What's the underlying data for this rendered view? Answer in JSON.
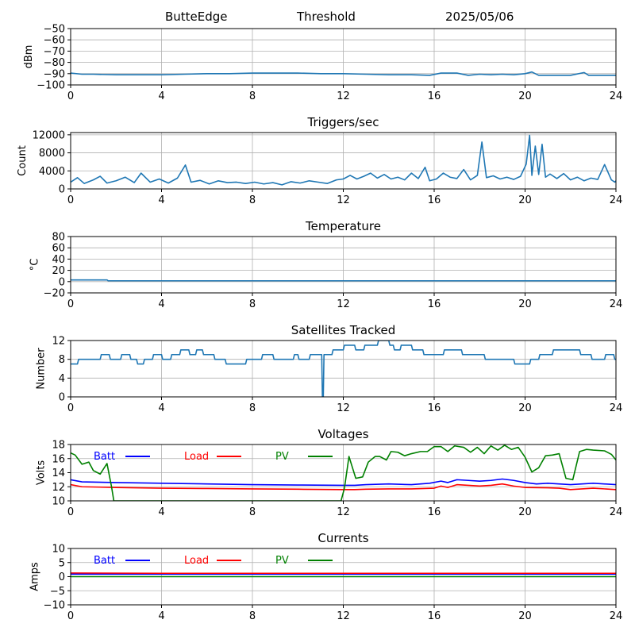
{
  "header": {
    "station": "ButteEdge",
    "label": "Threshold",
    "date": "2025/05/06"
  },
  "chart_data": [
    {
      "id": "threshold",
      "type": "line",
      "title": "",
      "ylabel": "dBm",
      "xlim": [
        0,
        24
      ],
      "ylim": [
        -100,
        -50
      ],
      "xticks": [
        0,
        4,
        8,
        12,
        16,
        20,
        24
      ],
      "yticks": [
        -100,
        -90,
        -80,
        -70,
        -60,
        -50
      ],
      "grid": true,
      "series": [
        {
          "color": "#1f77b4",
          "x": [
            0,
            0.5,
            1,
            2,
            3,
            4,
            5,
            6,
            7,
            8,
            9,
            10,
            11,
            12,
            13,
            14,
            15,
            15.8,
            16.3,
            17,
            17.5,
            18,
            18.5,
            19,
            19.5,
            20,
            20.3,
            20.6,
            21,
            22,
            22.6,
            22.8,
            23.5,
            24
          ],
          "y": [
            -89.5,
            -90.5,
            -90.5,
            -91,
            -91,
            -91,
            -90.5,
            -90,
            -90,
            -89.5,
            -89.5,
            -89.5,
            -90,
            -90,
            -90.5,
            -91,
            -91,
            -91.5,
            -89.5,
            -89.5,
            -91.5,
            -90.5,
            -91,
            -90.5,
            -91,
            -90,
            -88.5,
            -91.5,
            -91.5,
            -91.5,
            -89,
            -91.5,
            -91.5,
            -91.5
          ]
        }
      ]
    },
    {
      "id": "triggers",
      "type": "line",
      "title": "Triggers/sec",
      "ylabel": "Count",
      "xlim": [
        0,
        24
      ],
      "ylim": [
        0,
        12500
      ],
      "xticks": [
        0,
        4,
        8,
        12,
        16,
        20,
        24
      ],
      "yticks": [
        0,
        4000,
        8000,
        12000
      ],
      "grid": true,
      "series": [
        {
          "color": "#1f77b4",
          "x": [
            0,
            0.3,
            0.6,
            1,
            1.3,
            1.6,
            2,
            2.4,
            2.8,
            3.1,
            3.5,
            3.9,
            4.3,
            4.7,
            5.05,
            5.3,
            5.7,
            6.1,
            6.5,
            6.9,
            7.3,
            7.7,
            8.1,
            8.5,
            8.9,
            9.3,
            9.7,
            10.1,
            10.5,
            10.9,
            11.3,
            11.7,
            12,
            12.3,
            12.6,
            12.9,
            13.2,
            13.5,
            13.8,
            14.1,
            14.4,
            14.7,
            15,
            15.3,
            15.6,
            15.8,
            16.1,
            16.4,
            16.7,
            17,
            17.3,
            17.6,
            17.9,
            18.1,
            18.3,
            18.6,
            18.9,
            19.2,
            19.5,
            19.8,
            20.05,
            20.2,
            20.3,
            20.45,
            20.6,
            20.75,
            20.9,
            21.1,
            21.4,
            21.7,
            22,
            22.3,
            22.6,
            22.9,
            23.2,
            23.5,
            23.8,
            23.95,
            24
          ],
          "y": [
            1500,
            2500,
            1200,
            2000,
            2800,
            1300,
            1800,
            2600,
            1400,
            3500,
            1500,
            2200,
            1300,
            2400,
            5300,
            1500,
            1900,
            1100,
            1800,
            1400,
            1500,
            1200,
            1500,
            1100,
            1400,
            900,
            1600,
            1300,
            1800,
            1500,
            1200,
            2000,
            2200,
            3000,
            2200,
            2800,
            3500,
            2400,
            3200,
            2200,
            2600,
            2000,
            3500,
            2300,
            4800,
            1800,
            2200,
            3500,
            2600,
            2300,
            4300,
            2000,
            3000,
            10400,
            2500,
            2900,
            2200,
            2600,
            2100,
            2800,
            5500,
            11900,
            3000,
            9500,
            3200,
            9900,
            2600,
            3300,
            2300,
            3400,
            2000,
            2600,
            1800,
            2400,
            2100,
            5400,
            2000,
            1500,
            1800
          ]
        }
      ]
    },
    {
      "id": "temperature",
      "type": "line",
      "title": "Temperature",
      "ylabel": "°C",
      "xlim": [
        0,
        24
      ],
      "ylim": [
        -20,
        80
      ],
      "xticks": [
        0,
        4,
        8,
        12,
        16,
        20,
        24
      ],
      "yticks": [
        -20,
        0,
        20,
        40,
        60,
        80
      ],
      "grid": true,
      "series": [
        {
          "color": "#1f77b4",
          "x": [
            0,
            1.6,
            1.65,
            24
          ],
          "y": [
            3,
            3,
            1.5,
            1.5
          ]
        }
      ]
    },
    {
      "id": "satellites",
      "type": "line",
      "title": "Satellites Tracked",
      "ylabel": "Number",
      "xlim": [
        0,
        24
      ],
      "ylim": [
        0,
        12
      ],
      "xticks": [
        0,
        4,
        8,
        12,
        16,
        20,
        24
      ],
      "yticks": [
        0,
        4,
        8,
        12
      ],
      "grid": true,
      "series": [
        {
          "color": "#1f77b4",
          "x": [
            0,
            0.3,
            0.35,
            1.3,
            1.35,
            1.7,
            1.75,
            2.2,
            2.25,
            2.6,
            2.65,
            2.9,
            2.95,
            3.2,
            3.25,
            3.6,
            3.65,
            4,
            4.05,
            4.4,
            4.45,
            4.8,
            4.85,
            5.2,
            5.25,
            5.5,
            5.55,
            5.8,
            5.85,
            6.3,
            6.35,
            6.8,
            6.85,
            7.7,
            7.75,
            8.4,
            8.45,
            8.9,
            8.95,
            9.8,
            9.85,
            10,
            10.05,
            10.5,
            10.55,
            11.05,
            11.08,
            11.12,
            11.15,
            11.5,
            11.55,
            12,
            12.05,
            12.5,
            12.55,
            12.9,
            12.95,
            13.5,
            13.55,
            14,
            14.05,
            14.2,
            14.25,
            14.5,
            14.55,
            15,
            15.05,
            15.5,
            15.55,
            16.4,
            16.45,
            17.2,
            17.25,
            18.2,
            18.25,
            19.5,
            19.55,
            20.2,
            20.25,
            20.6,
            20.65,
            21.2,
            21.25,
            22.4,
            22.45,
            22.9,
            22.95,
            23.5,
            23.55,
            23.9,
            23.95,
            24
          ],
          "y": [
            7,
            7,
            8,
            8,
            9,
            9,
            8,
            8,
            9,
            9,
            8,
            8,
            7,
            7,
            8,
            8,
            9,
            9,
            8,
            8,
            9,
            9,
            10,
            10,
            9,
            9,
            10,
            10,
            9,
            9,
            8,
            8,
            7,
            7,
            8,
            8,
            9,
            9,
            8,
            8,
            9,
            9,
            8,
            8,
            9,
            9,
            0,
            0,
            9,
            9,
            10,
            10,
            11,
            11,
            10,
            10,
            11,
            11,
            12,
            12,
            11,
            11,
            10,
            10,
            11,
            11,
            10,
            10,
            9,
            9,
            10,
            10,
            9,
            9,
            8,
            8,
            7,
            7,
            8,
            8,
            9,
            9,
            10,
            10,
            9,
            9,
            8,
            8,
            9,
            9,
            8,
            8
          ]
        }
      ]
    },
    {
      "id": "voltages",
      "type": "line",
      "title": "Voltages",
      "ylabel": "Volts",
      "xlim": [
        0,
        24
      ],
      "ylim": [
        10,
        18
      ],
      "xticks": [
        0,
        4,
        8,
        12,
        16,
        20,
        24
      ],
      "yticks": [
        10,
        12,
        14,
        16,
        18
      ],
      "grid": true,
      "legend": "top",
      "series": [
        {
          "name": "Batt",
          "color": "#0000ff",
          "x": [
            0,
            0.5,
            2,
            4,
            6,
            8,
            10,
            12,
            12.5,
            13,
            14,
            15,
            15.8,
            16.3,
            16.6,
            17,
            17.5,
            18,
            18.5,
            19,
            19.5,
            20,
            20.5,
            21,
            21.5,
            22,
            23,
            24
          ],
          "y": [
            13,
            12.7,
            12.6,
            12.5,
            12.4,
            12.3,
            12.25,
            12.2,
            12.2,
            12.3,
            12.4,
            12.3,
            12.5,
            12.8,
            12.6,
            13,
            12.9,
            12.8,
            12.9,
            13.1,
            12.9,
            12.6,
            12.4,
            12.5,
            12.4,
            12.3,
            12.5,
            12.3
          ]
        },
        {
          "name": "Load",
          "color": "#ff0000",
          "x": [
            0,
            0.5,
            2,
            4,
            6,
            8,
            10,
            12,
            12.5,
            13,
            14,
            15,
            16,
            16.3,
            16.6,
            17,
            17.5,
            18,
            18.5,
            19,
            19.5,
            20,
            21,
            21.5,
            22,
            23,
            24
          ],
          "y": [
            12.3,
            12,
            11.9,
            11.8,
            11.75,
            11.7,
            11.65,
            11.6,
            11.6,
            11.65,
            11.7,
            11.7,
            11.8,
            12.1,
            11.9,
            12.3,
            12.2,
            12.1,
            12.2,
            12.4,
            12.1,
            11.9,
            11.85,
            11.8,
            11.6,
            11.8,
            11.6
          ]
        },
        {
          "name": "PV",
          "color": "#008000",
          "x": [
            0,
            0.2,
            0.5,
            0.8,
            1,
            1.3,
            1.6,
            1.8,
            1.9,
            2.0,
            11.9,
            12.05,
            12.25,
            12.55,
            12.85,
            13.1,
            13.4,
            13.6,
            13.9,
            14.1,
            14.4,
            14.7,
            15,
            15.4,
            15.7,
            16,
            16.3,
            16.6,
            16.9,
            17.3,
            17.6,
            17.9,
            18.2,
            18.5,
            18.8,
            19.1,
            19.4,
            19.7,
            20,
            20.3,
            20.6,
            20.9,
            21.2,
            21.5,
            21.8,
            22.1,
            22.4,
            22.7,
            23,
            23.5,
            23.8,
            24
          ],
          "y": [
            16.8,
            16.5,
            15.2,
            15.5,
            14.3,
            13.8,
            15.3,
            12.0,
            10,
            10,
            10,
            11.8,
            16.3,
            13.2,
            13.4,
            15.5,
            16.3,
            16.3,
            15.8,
            17,
            16.9,
            16.4,
            16.7,
            17,
            17,
            17.7,
            17.7,
            17,
            17.8,
            17.6,
            16.9,
            17.6,
            16.7,
            17.8,
            17.2,
            17.9,
            17.3,
            17.6,
            16.2,
            14.1,
            14.7,
            16.4,
            16.5,
            16.7,
            13.2,
            13,
            17,
            17.3,
            17.2,
            17.1,
            16.6,
            15.8
          ]
        }
      ]
    },
    {
      "id": "currents",
      "type": "line",
      "title": "Currents",
      "ylabel": "Amps",
      "xlim": [
        0,
        24
      ],
      "ylim": [
        -10,
        10
      ],
      "xticks": [
        0,
        4,
        8,
        12,
        16,
        20,
        24
      ],
      "yticks": [
        -10,
        -5,
        0,
        5,
        10
      ],
      "grid": true,
      "legend": "top",
      "series": [
        {
          "name": "Batt",
          "color": "#0000ff",
          "x": [
            0,
            24
          ],
          "y": [
            0.9,
            0.9
          ]
        },
        {
          "name": "Load",
          "color": "#ff0000",
          "x": [
            0,
            4,
            8,
            12,
            16,
            20,
            24
          ],
          "y": [
            1.3,
            1.2,
            1.2,
            1.2,
            1.2,
            1.2,
            1.2
          ]
        },
        {
          "name": "PV",
          "color": "#008000",
          "x": [
            0,
            24
          ],
          "y": [
            0,
            0
          ]
        }
      ]
    }
  ]
}
